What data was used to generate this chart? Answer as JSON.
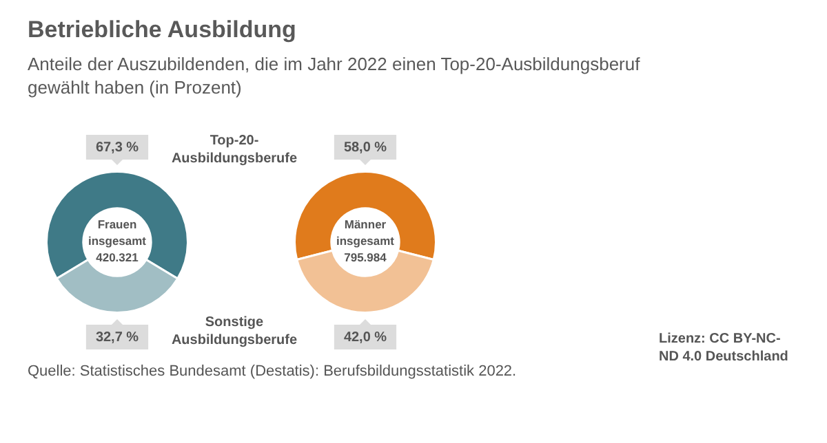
{
  "chart_data": [
    {
      "type": "donut",
      "title": "Betriebliche Ausbildung",
      "subtitle": "Anteile der Auszubildenden, die im Jahr 2022 einen Top-20-Ausbildungsberuf gewählt haben (in Prozent)",
      "categories": [
        "Top-20-Ausbildungsberufe",
        "Sonstige Ausbildungsberufe"
      ],
      "values": [
        67.3,
        32.7
      ],
      "colors": [
        "#3f7a87",
        "#a1bec4"
      ],
      "value_labels": [
        "67,3 %",
        "32,7 %"
      ],
      "legend": false,
      "annotations": [
        "Frauen insgesamt 420.321",
        "Quelle: Statistisches Bundesamt (Destatis): Berufsbildungsstatistik 2022.",
        "Lizenz: CC BY-NC-ND 4.0 Deutschland"
      ]
    },
    {
      "type": "donut",
      "categories": [
        null,
        null
      ],
      "values": [
        58.0,
        42.0
      ],
      "colors": [
        "#e07b1c",
        "#f2c195"
      ],
      "value_labels": [
        "58,0 %",
        "42,0 %"
      ],
      "legend": false,
      "annotations": [
        "Männer insgesamt 795.984"
      ]
    }
  ]
}
